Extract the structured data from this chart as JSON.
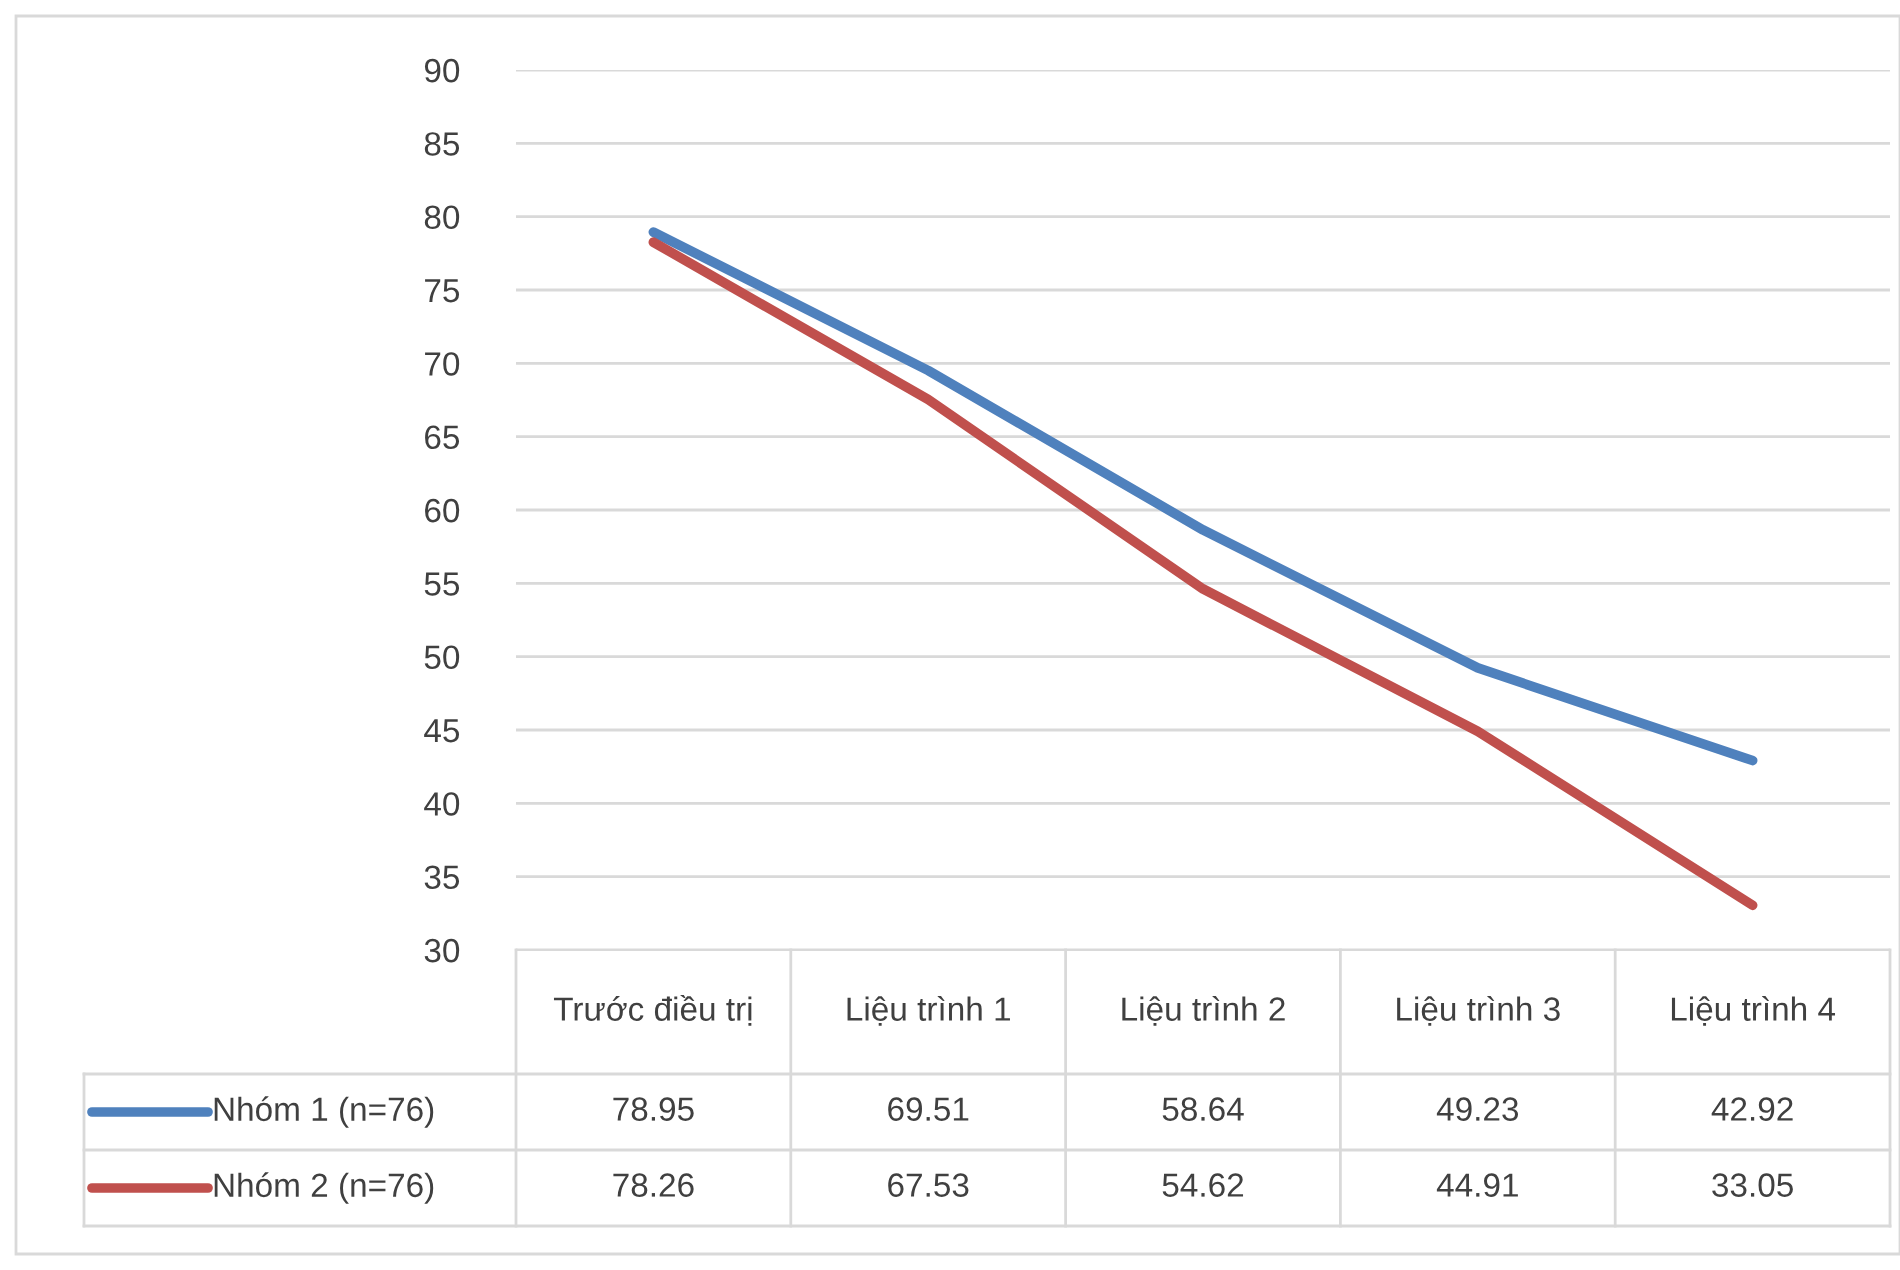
{
  "chart_data": {
    "type": "line",
    "categories": [
      "Trước điều trị",
      "Liệu trình 1",
      "Liệu trình 2",
      "Liệu trình 3",
      "Liệu trình 4"
    ],
    "series": [
      {
        "name": "Nhóm 1 (n=76)",
        "color": "#4f81bd",
        "values": [
          78.95,
          69.51,
          58.64,
          49.23,
          42.92
        ]
      },
      {
        "name": "Nhóm 2 (n=76)",
        "color": "#c0504d",
        "values": [
          78.26,
          67.53,
          54.62,
          44.91,
          33.05
        ]
      }
    ],
    "ylim": [
      30,
      90
    ],
    "yticks": [
      30,
      35,
      40,
      45,
      50,
      55,
      60,
      65,
      70,
      75,
      80,
      85,
      90
    ],
    "grid": "y",
    "legend": "bottom left",
    "data_labels": true,
    "marker": "none",
    "line_style": "solid"
  }
}
